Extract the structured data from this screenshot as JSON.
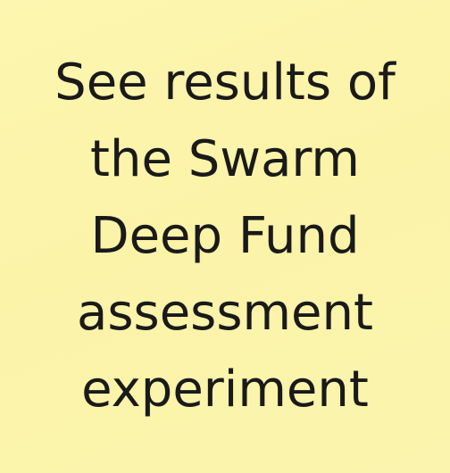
{
  "note": {
    "lines": [
      "See results of",
      "the Swarm",
      "Deep Fund",
      "assessment",
      "experiment"
    ],
    "background_color": "#fbf3a8",
    "text_color": "#1a1a1a"
  }
}
